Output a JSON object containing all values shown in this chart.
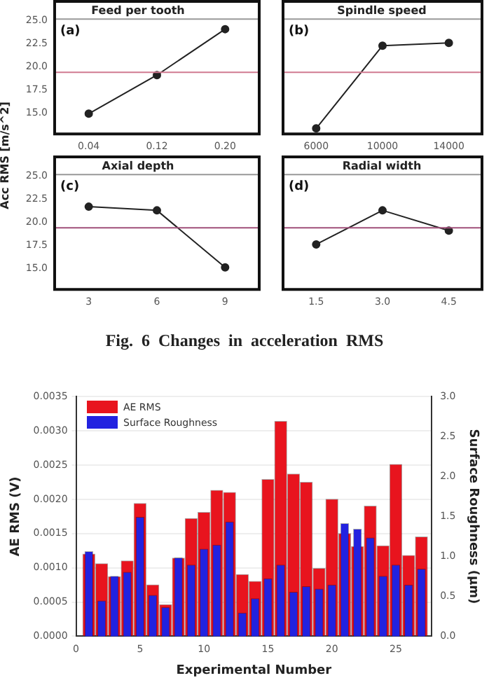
{
  "chart_data": [
    {
      "type": "line",
      "title": "Feed per tooth",
      "ylabel": "Acc RMS [m/s^2]",
      "categories": [
        "0.04",
        "0.12",
        "0.20"
      ],
      "values": [
        14.9,
        19.1,
        24.1
      ],
      "color": "#222222",
      "marker": "circle",
      "ylim": [
        12.7,
        25.2
      ],
      "yticks": [
        {
          "value": 15,
          "label": "15.0"
        },
        {
          "value": 17.5,
          "label": "17.5"
        },
        {
          "value": 20,
          "label": "20.0"
        },
        {
          "value": 22.5,
          "label": "22.5"
        },
        {
          "value": 25,
          "label": "25.0"
        }
      ],
      "ref_lines": [
        {
          "axis": "y",
          "value": 19.4,
          "color": "#d07a90"
        }
      ],
      "annotations": [
        "(a)"
      ]
    },
    {
      "type": "line",
      "title": "Spindle speed",
      "categories": [
        "6000",
        "10000",
        "14000"
      ],
      "values": [
        13.3,
        22.3,
        22.6
      ],
      "color": "#222222",
      "marker": "circle",
      "ylim": [
        12.7,
        25.2
      ],
      "tick_labels": "x",
      "ref_lines": [
        {
          "axis": "y",
          "value": 19.4,
          "color": "#d07a90"
        }
      ],
      "annotations": [
        "(b)"
      ]
    },
    {
      "type": "line",
      "title": "Axial depth",
      "categories": [
        "3",
        "6",
        "9"
      ],
      "values": [
        21.7,
        21.3,
        15.1
      ],
      "color": "#222222",
      "marker": "circle",
      "ylim": [
        12.7,
        25.2
      ],
      "yticks": [
        {
          "value": 15,
          "label": "15.0"
        },
        {
          "value": 17.5,
          "label": "17.5"
        },
        {
          "value": 20,
          "label": "20.0"
        },
        {
          "value": 22.5,
          "label": "22.5"
        },
        {
          "value": 25,
          "label": "25.0"
        }
      ],
      "ref_lines": [
        {
          "axis": "y",
          "value": 19.4,
          "color": "#a0507a"
        }
      ],
      "annotations": [
        "(c)"
      ]
    },
    {
      "type": "line",
      "title": "Radial width",
      "categories": [
        "1.5",
        "3.0",
        "4.5"
      ],
      "values": [
        17.6,
        21.3,
        19.1
      ],
      "color": "#222222",
      "marker": "circle",
      "ylim": [
        12.7,
        25.2
      ],
      "tick_labels": "x",
      "ref_lines": [
        {
          "axis": "y",
          "value": 19.4,
          "color": "#a0507a"
        }
      ],
      "annotations": [
        "(d)",
        "Fig. 6 Changes in acceleration RMS"
      ]
    },
    {
      "type": "bar",
      "xlabel": "Experimental Number",
      "ylabel": "AE RMS (V)",
      "y2label": "Surface Roughness (µm)",
      "x": [
        1,
        2,
        3,
        4,
        5,
        6,
        7,
        8,
        9,
        10,
        11,
        12,
        13,
        14,
        15,
        16,
        17,
        18,
        19,
        20,
        21,
        22,
        23,
        24,
        25,
        26,
        27
      ],
      "xlim": [
        0,
        27.8
      ],
      "xticks": [
        0,
        5,
        10,
        15,
        20,
        25
      ],
      "ylim": [
        0,
        0.0035
      ],
      "yticks": [
        {
          "value": 0,
          "label": "0.0000"
        },
        {
          "value": 0.0005,
          "label": "0.0005"
        },
        {
          "value": 0.001,
          "label": "0.0010"
        },
        {
          "value": 0.0015,
          "label": "0.0015"
        },
        {
          "value": 0.002,
          "label": "0.0020"
        },
        {
          "value": 0.0025,
          "label": "0.0025"
        },
        {
          "value": 0.003,
          "label": "0.0030"
        },
        {
          "value": 0.0035,
          "label": "0.0035"
        }
      ],
      "y2lim": [
        0,
        3
      ],
      "y2ticks": [
        {
          "value": 0,
          "label": "0.0"
        },
        {
          "value": 0.5,
          "label": "0.5"
        },
        {
          "value": 1,
          "label": "1.0"
        },
        {
          "value": 1.5,
          "label": "1.5"
        },
        {
          "value": 2,
          "label": "2.0"
        },
        {
          "value": 2.5,
          "label": "2.5"
        },
        {
          "value": 3,
          "label": "3.0"
        }
      ],
      "grid": "y",
      "legend": "top left",
      "series": [
        {
          "name": "AE RMS",
          "color": "#e8141e",
          "values": [
            0.0012,
            0.00106,
            0.00087,
            0.0011,
            0.00194,
            0.00075,
            0.00046,
            0.00114,
            0.00172,
            0.00181,
            0.00213,
            0.0021,
            0.0009,
            0.0008,
            0.00229,
            0.00314,
            0.00237,
            0.00225,
            0.00099,
            0.002,
            0.0015,
            0.00131,
            0.0019,
            0.00132,
            0.00251,
            0.00118,
            0.00145
          ]
        },
        {
          "name": "Surface Roughness",
          "color": "#2222e0",
          "axis": "y2",
          "values": [
            1.06,
            0.44,
            0.75,
            0.8,
            1.49,
            0.51,
            0.36,
            0.98,
            0.89,
            1.09,
            1.14,
            1.43,
            0.29,
            0.47,
            0.72,
            0.89,
            0.55,
            0.62,
            0.59,
            0.64,
            1.41,
            1.34,
            1.23,
            0.75,
            0.89,
            0.64,
            0.84
          ]
        }
      ]
    }
  ]
}
